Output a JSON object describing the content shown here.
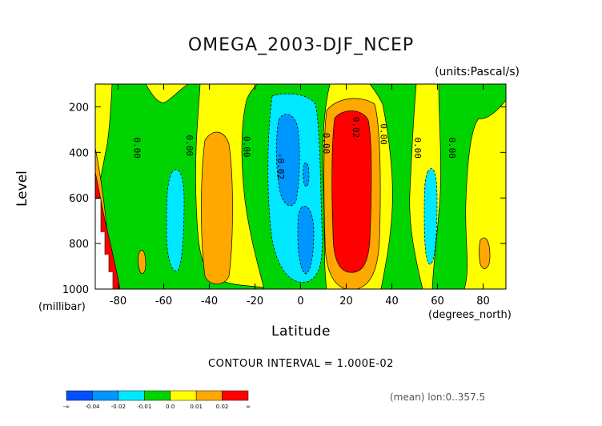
{
  "chart_data": {
    "type": "heatmap",
    "title": "OMEGA_2003-DJF_NCEP",
    "units_label": "(units:Pascal/s)",
    "ylabel": "Level",
    "y_units": "(millibar)",
    "xlabel": "Latitude",
    "x_units": "(degrees_north)",
    "footer": "CONTOUR INTERVAL = 1.000E-02",
    "mean_label": "(mean) lon:0..357.5",
    "xlim": [
      -90,
      90
    ],
    "ylim": [
      1000,
      100
    ],
    "x_ticks": [
      -80,
      -60,
      -40,
      -20,
      0,
      20,
      40,
      60,
      80
    ],
    "x_tick_labels": [
      "-80",
      "-60",
      "-40",
      "-20",
      "0",
      "20",
      "40",
      "60",
      "80"
    ],
    "y_ticks": [
      200,
      400,
      600,
      800,
      1000
    ],
    "y_tick_labels": [
      "200",
      "400",
      "600",
      "800",
      "1000"
    ],
    "contour_labels": [
      {
        "lat": -73,
        "lev": 380,
        "text": "0.00"
      },
      {
        "lat": -50,
        "lev": 370,
        "text": "0.00"
      },
      {
        "lat": -25,
        "lev": 375,
        "text": "0.00"
      },
      {
        "lat": -10,
        "lev": 460,
        "text": "-0.02"
      },
      {
        "lat": 10,
        "lev": 360,
        "text": "0.00"
      },
      {
        "lat": 23,
        "lev": 290,
        "text": "0.02"
      },
      {
        "lat": 35,
        "lev": 320,
        "text": "0.00"
      },
      {
        "lat": 50,
        "lev": 380,
        "text": "0.00"
      },
      {
        "lat": 65,
        "lev": 380,
        "text": "0.00"
      }
    ],
    "levels": [
      -0.04,
      -0.02,
      -0.01,
      0.0,
      0.01,
      0.02
    ],
    "colorbar": {
      "colors": [
        "#0050ff",
        "#0096ff",
        "#00e8ff",
        "#00d400",
        "#ffff00",
        "#ffa800",
        "#ff0000"
      ],
      "labels": [
        "-∞",
        "-0.04",
        "-0.02",
        "-0.01",
        "0.0",
        "0.01",
        "0.02",
        "∞"
      ]
    },
    "regions": [
      {
        "name": "yellow-background",
        "value": 0.005,
        "color": "#ffff00"
      },
      {
        "name": "green-band-south",
        "value": -0.005,
        "color": "#00d400"
      },
      {
        "name": "orange-south-40",
        "value": 0.015,
        "color": "#ffa800"
      },
      {
        "name": "cyan-south-55",
        "value": -0.015,
        "color": "#00e8ff"
      },
      {
        "name": "cyan-equator",
        "value": -0.015,
        "color": "#00e8ff"
      },
      {
        "name": "blue-equator",
        "value": -0.025,
        "color": "#0096ff"
      },
      {
        "name": "orange-north-20",
        "value": 0.015,
        "color": "#ffa800"
      },
      {
        "name": "red-north-20",
        "value": 0.025,
        "color": "#ff0000"
      },
      {
        "name": "red-antarctic",
        "value": 0.025,
        "color": "#ff0000"
      },
      {
        "name": "cyan-north-55",
        "value": -0.015,
        "color": "#00e8ff"
      }
    ]
  }
}
